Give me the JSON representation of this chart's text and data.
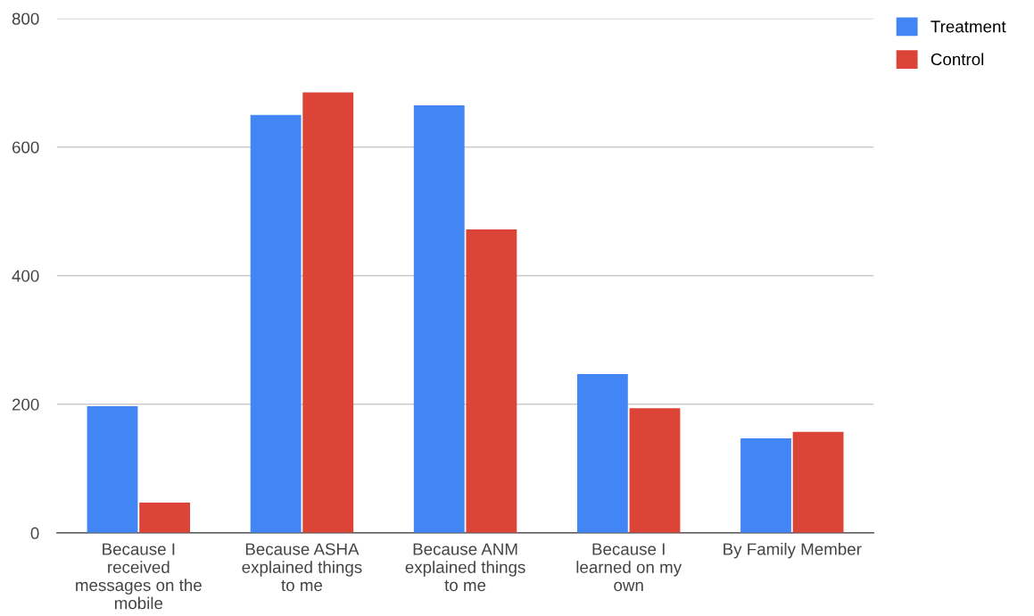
{
  "chart_data": {
    "type": "bar",
    "categories": [
      "Because I received messages on the mobile",
      "Because ASHA explained things to me",
      "Because ANM explained things to me",
      "Because I learned on my own",
      "By Family Member"
    ],
    "series": [
      {
        "name": "Treatment",
        "color": "#4285f4",
        "values": [
          197,
          650,
          665,
          247,
          147
        ]
      },
      {
        "name": "Control",
        "color": "#db4437",
        "values": [
          47,
          685,
          472,
          194,
          157
        ]
      }
    ],
    "ylim": [
      0,
      800
    ],
    "yticks": [
      0,
      200,
      400,
      600,
      800
    ],
    "grid": "y",
    "legend": "top right"
  }
}
